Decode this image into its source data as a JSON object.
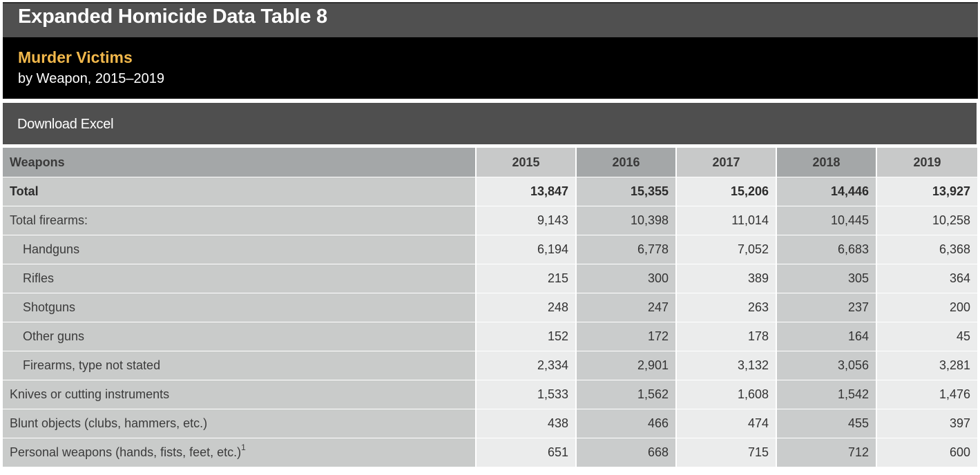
{
  "header": {
    "title": "Expanded Homicide Data Table 8",
    "subtitle_main": "Murder Victims",
    "subtitle_sub": "by Weapon, 2015–2019"
  },
  "download": {
    "label": "Download Excel"
  },
  "table": {
    "column_header": "Weapons",
    "years": [
      "2015",
      "2016",
      "2017",
      "2018",
      "2019"
    ],
    "rows": [
      {
        "label": "Total",
        "values": [
          "13,847",
          "15,355",
          "15,206",
          "14,446",
          "13,927"
        ],
        "bold": true,
        "indent": false
      },
      {
        "label": "Total firearms:",
        "values": [
          "9,143",
          "10,398",
          "11,014",
          "10,445",
          "10,258"
        ],
        "bold": false,
        "indent": false
      },
      {
        "label": "Handguns",
        "values": [
          "6,194",
          "6,778",
          "7,052",
          "6,683",
          "6,368"
        ],
        "bold": false,
        "indent": true
      },
      {
        "label": "Rifles",
        "values": [
          "215",
          "300",
          "389",
          "305",
          "364"
        ],
        "bold": false,
        "indent": true
      },
      {
        "label": "Shotguns",
        "values": [
          "248",
          "247",
          "263",
          "237",
          "200"
        ],
        "bold": false,
        "indent": true
      },
      {
        "label": "Other guns",
        "values": [
          "152",
          "172",
          "178",
          "164",
          "45"
        ],
        "bold": false,
        "indent": true
      },
      {
        "label": "Firearms, type not stated",
        "values": [
          "2,334",
          "2,901",
          "3,132",
          "3,056",
          "3,281"
        ],
        "bold": false,
        "indent": true
      },
      {
        "label": "Knives or cutting instruments",
        "values": [
          "1,533",
          "1,562",
          "1,608",
          "1,542",
          "1,476"
        ],
        "bold": false,
        "indent": false
      },
      {
        "label": "Blunt objects (clubs, hammers, etc.)",
        "values": [
          "438",
          "466",
          "474",
          "455",
          "397"
        ],
        "bold": false,
        "indent": false
      },
      {
        "label": "Personal weapons (hands, fists, feet, etc.)",
        "footnote": "1",
        "values": [
          "651",
          "668",
          "715",
          "712",
          "600"
        ],
        "bold": false,
        "indent": false
      }
    ]
  },
  "colors": {
    "title_bg": "#505050",
    "subtitle_bg": "#000000",
    "subtitle_accent": "#f2b84b",
    "header_dark": "#a4a7a8",
    "header_light": "#c8c9c9",
    "cell_light": "#ebecec",
    "cell_mid": "#cacccc"
  }
}
